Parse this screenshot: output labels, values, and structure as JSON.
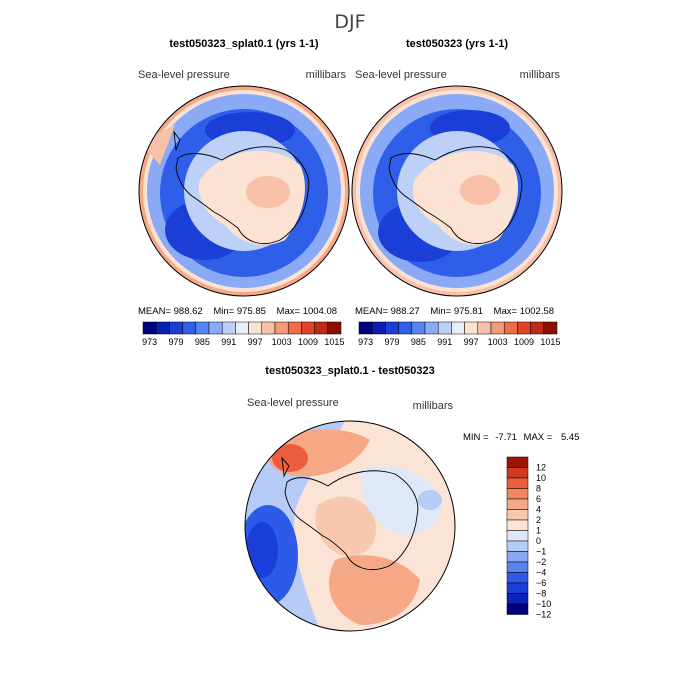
{
  "figure_title": "DJF",
  "colors": {
    "abs_levels": [
      "#000080",
      "#0a1fb0",
      "#1b3fd6",
      "#2f5fe8",
      "#5784f0",
      "#8aaaf5",
      "#bcd0f8",
      "#e8eef8",
      "#fbe2d2",
      "#f8c0a6",
      "#f59a78",
      "#ef6e4a",
      "#e0432a",
      "#bf2a14",
      "#8e1004"
    ],
    "diff_levels": [
      "#000080",
      "#0b22b8",
      "#1a3ed9",
      "#2d5ae6",
      "#5a83ef",
      "#88a8f4",
      "#b6ccf7",
      "#dfe8f8",
      "#fbe4d6",
      "#f8c8ae",
      "#f6a886",
      "#f18660",
      "#ea5e3c",
      "#d13a1f",
      "#a01404"
    ],
    "coast": "#000000"
  },
  "chart_data": [
    {
      "type": "heatmap",
      "title": "test050323_splat0.1 (yrs 1-1)",
      "variable": "Sea-level pressure",
      "units": "millibars",
      "projection": "south-polar-stereographic",
      "stats": {
        "mean_label": "MEAN=",
        "mean": "988.62",
        "min_label": "Min=",
        "min": "975.85",
        "max_label": "Max=",
        "max": "1004.08"
      },
      "colorbar": {
        "levels": [
          973,
          976,
          979,
          982,
          985,
          988,
          991,
          994,
          997,
          1000,
          1003,
          1006,
          1009,
          1012,
          1015
        ],
        "tick_labels": [
          "973",
          "979",
          "985",
          "991",
          "997",
          "1003",
          "1009",
          "1015"
        ]
      }
    },
    {
      "type": "heatmap",
      "title": "test050323 (yrs 1-1)",
      "variable": "Sea-level pressure",
      "units": "millibars",
      "projection": "south-polar-stereographic",
      "stats": {
        "mean_label": "MEAN=",
        "mean": "988.27",
        "min_label": "Min=",
        "min": "975.81",
        "max_label": "Max=",
        "max": "1002.58"
      },
      "colorbar": {
        "levels": [
          973,
          976,
          979,
          982,
          985,
          988,
          991,
          994,
          997,
          1000,
          1003,
          1006,
          1009,
          1012,
          1015
        ],
        "tick_labels": [
          "973",
          "979",
          "985",
          "991",
          "997",
          "1003",
          "1009",
          "1015"
        ]
      }
    },
    {
      "type": "heatmap",
      "title": "test050323_splat0.1 - test050323",
      "variable": "Sea-level pressure",
      "units": "millibars",
      "projection": "south-polar-stereographic",
      "stats": {
        "min_label": "MIN =",
        "min": "-7.71",
        "max_label": "MAX =",
        "max": "5.45"
      },
      "colorbar": {
        "levels": [
          -12,
          -10,
          -8,
          -6,
          -4,
          -2,
          -1,
          0,
          1,
          2,
          4,
          6,
          8,
          10,
          12
        ],
        "tick_labels": [
          "12",
          "10",
          "8",
          "6",
          "4",
          "2",
          "1",
          "0",
          "−1",
          "−2",
          "−4",
          "−6",
          "−8",
          "−10",
          "−12"
        ]
      }
    }
  ]
}
